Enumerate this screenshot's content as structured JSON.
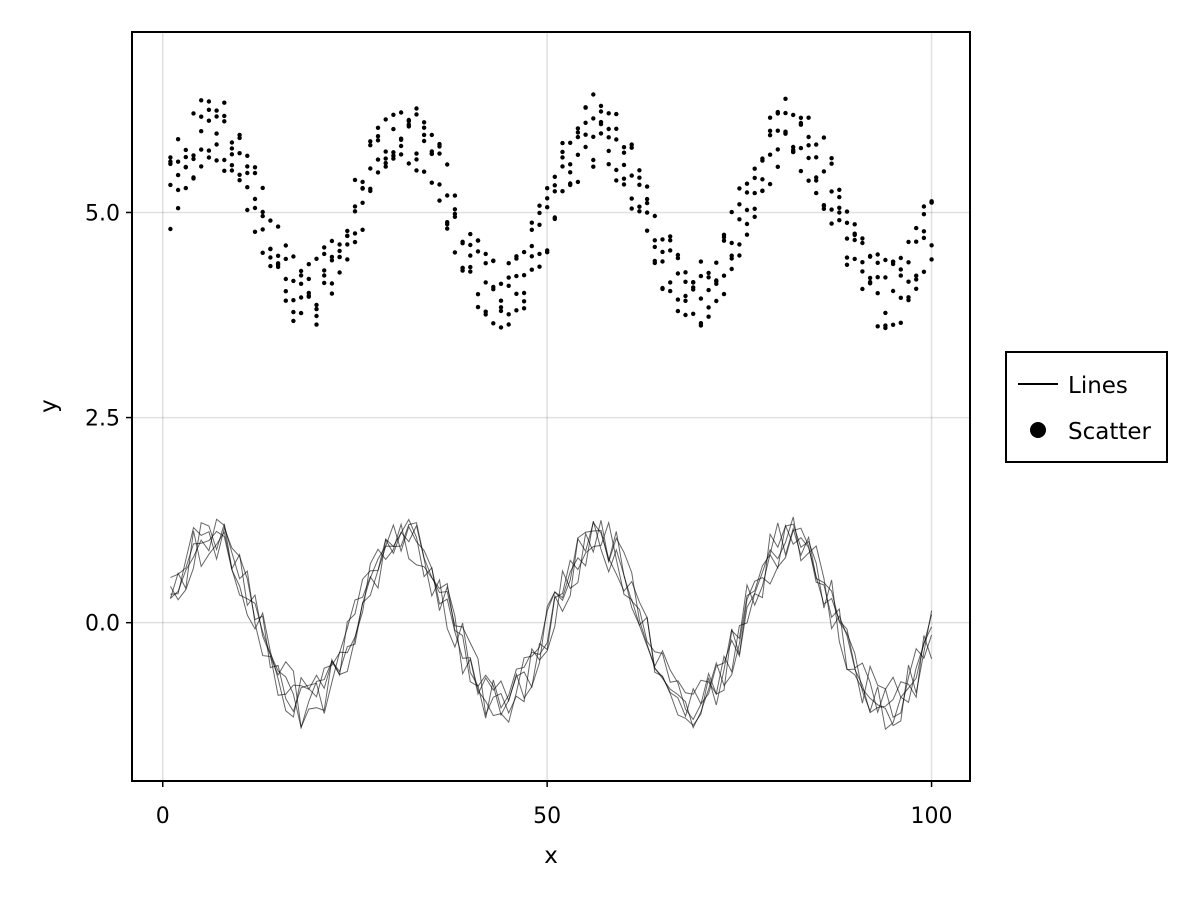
{
  "chart_data": {
    "type": "line",
    "title": "",
    "xlabel": "x",
    "ylabel": "y",
    "xlim": [
      -4,
      105
    ],
    "ylim": [
      -1.93,
      7.2
    ],
    "x_ticks": [
      0,
      50,
      100
    ],
    "x_tick_labels": [
      "0",
      "50",
      "100"
    ],
    "y_ticks": [
      0.0,
      2.5,
      5.0
    ],
    "y_tick_labels": [
      "0.0",
      "2.5",
      "5.0"
    ],
    "grid": true,
    "legend": {
      "position": "right",
      "entries": [
        {
          "label": "Lines",
          "marker": "line"
        },
        {
          "label": "Scatter",
          "marker": "circle"
        }
      ]
    },
    "series": [
      {
        "name": "Lines",
        "kind": "line",
        "count": 5,
        "x_range": [
          1,
          100
        ],
        "n_points": 100,
        "description_function": "sin(x/4) + noise",
        "noise_amplitude": 0.2,
        "color": "#000000",
        "stroke_opacity": 0.6
      },
      {
        "name": "Scatter",
        "kind": "scatter",
        "count": 5,
        "x_range": [
          1,
          100
        ],
        "n_points": 100,
        "y_offset": 5,
        "description_function": "5 + sin(x/4) + noise",
        "noise_amplitude": 0.3,
        "color": "#000000"
      }
    ]
  }
}
